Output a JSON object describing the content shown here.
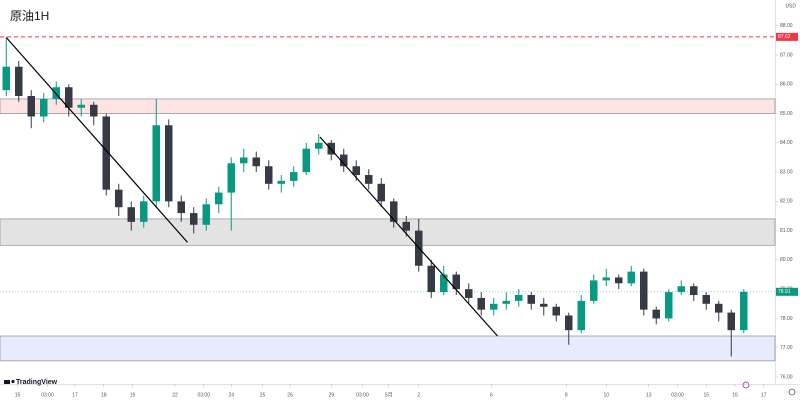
{
  "chart_data": {
    "type": "candlestick",
    "title": "原油1H",
    "currency": "USD",
    "brand": "TradingView",
    "up_color": "#089981",
    "down_color": "#363a45",
    "grid": false,
    "xlim": [
      -0.5,
      61.5
    ],
    "ylim": [
      75.76,
      88.88
    ],
    "yticks": [
      {
        "value": 76,
        "label": "76.00"
      },
      {
        "value": 77,
        "label": "77.00"
      },
      {
        "value": 78,
        "label": "78.00"
      },
      {
        "value": 79,
        "label": "79.00"
      },
      {
        "value": 80,
        "label": "80.00"
      },
      {
        "value": 81,
        "label": "81.00"
      },
      {
        "value": 82,
        "label": "82.00"
      },
      {
        "value": 83,
        "label": "83.00"
      },
      {
        "value": 84,
        "label": "84.00"
      },
      {
        "value": 85,
        "label": "85.00"
      },
      {
        "value": 86,
        "label": "86.00"
      },
      {
        "value": 87,
        "label": "87.00"
      },
      {
        "value": 88,
        "label": "88.00"
      }
    ],
    "xticks": [
      {
        "value": 0.9,
        "label": "15"
      },
      {
        "value": 3.3,
        "label": "03:00"
      },
      {
        "value": 5.5,
        "label": "17"
      },
      {
        "value": 7.8,
        "label": "18"
      },
      {
        "value": 10.1,
        "label": "19"
      },
      {
        "value": 13.5,
        "label": "22"
      },
      {
        "value": 15.8,
        "label": "03:00"
      },
      {
        "value": 18,
        "label": "24"
      },
      {
        "value": 20.5,
        "label": "25"
      },
      {
        "value": 22.7,
        "label": "26"
      },
      {
        "value": 26,
        "label": "29"
      },
      {
        "value": 28.5,
        "label": "03:00"
      },
      {
        "value": 30.6,
        "label": "5月"
      },
      {
        "value": 33,
        "label": "2"
      },
      {
        "value": 38.8,
        "label": "6"
      },
      {
        "value": 44.8,
        "label": "8"
      },
      {
        "value": 48,
        "label": "10"
      },
      {
        "value": 51.4,
        "label": "13"
      },
      {
        "value": 53.7,
        "label": "03:00"
      },
      {
        "value": 56,
        "label": "15"
      },
      {
        "value": 58.3,
        "label": "16"
      },
      {
        "value": 60.6,
        "label": "17"
      }
    ],
    "open": [
      85.8,
      86.6,
      85.6,
      84.9,
      85.5,
      85.9,
      85.2,
      85.3,
      84.9,
      82.4,
      81.8,
      81.3,
      82.0,
      84.6,
      82.0,
      81.6,
      81.2,
      81.9,
      82.3,
      83.3,
      83.5,
      83.2,
      82.6,
      82.7,
      83.0,
      83.8,
      84.0,
      83.6,
      83.2,
      82.9,
      82.6,
      82.0,
      81.3,
      81.0,
      79.8,
      78.9,
      79.5,
      79.0,
      78.7,
      78.3,
      78.5,
      78.6,
      78.8,
      78.5,
      78.4,
      78.1,
      77.6,
      78.6,
      79.3,
      79.4,
      79.2,
      79.6,
      78.3,
      78.0,
      78.9,
      79.1,
      78.8,
      78.5,
      78.2,
      77.6
    ],
    "high": [
      87.6,
      86.8,
      85.8,
      85.7,
      86.1,
      86.0,
      85.5,
      85.4,
      85.0,
      82.6,
      82.0,
      82.2,
      85.5,
      84.8,
      82.2,
      81.8,
      82.1,
      82.5,
      83.5,
      83.8,
      83.7,
      83.4,
      82.9,
      83.2,
      84.0,
      84.3,
      84.1,
      83.8,
      83.4,
      83.1,
      82.8,
      82.1,
      81.5,
      81.4,
      80.0,
      79.8,
      79.6,
      79.2,
      78.9,
      78.7,
      78.9,
      79.0,
      78.9,
      78.7,
      78.5,
      78.2,
      78.8,
      79.5,
      79.7,
      79.5,
      79.8,
      79.7,
      78.4,
      79.0,
      79.3,
      79.2,
      78.9,
      78.6,
      78.3,
      79.0
    ],
    "low": [
      85.6,
      85.4,
      84.5,
      84.7,
      85.3,
      84.9,
      84.9,
      84.6,
      82.2,
      81.5,
      81.0,
      81.1,
      81.8,
      81.8,
      81.3,
      80.9,
      81.0,
      81.6,
      81.0,
      83.0,
      83.0,
      82.4,
      82.3,
      82.5,
      82.9,
      83.6,
      83.4,
      83.0,
      82.7,
      82.4,
      81.8,
      81.1,
      80.8,
      79.6,
      78.7,
      78.8,
      78.8,
      78.5,
      78.1,
      78.1,
      78.3,
      78.4,
      78.3,
      78.1,
      77.9,
      77.1,
      77.5,
      78.5,
      79.1,
      79.0,
      79.1,
      78.1,
      77.8,
      77.9,
      78.8,
      78.6,
      78.3,
      77.9,
      76.7,
      77.5
    ],
    "close": [
      86.6,
      85.6,
      84.9,
      85.5,
      85.9,
      85.2,
      85.3,
      84.9,
      82.4,
      81.8,
      81.3,
      82.0,
      84.6,
      82.0,
      81.6,
      81.2,
      81.9,
      82.3,
      83.3,
      83.5,
      83.2,
      82.6,
      82.7,
      83.0,
      83.8,
      84.0,
      83.6,
      83.2,
      82.9,
      82.6,
      82.0,
      81.3,
      81.0,
      79.8,
      78.9,
      79.5,
      79.0,
      78.7,
      78.3,
      78.5,
      78.6,
      78.8,
      78.5,
      78.4,
      78.1,
      77.6,
      78.6,
      79.3,
      79.4,
      79.2,
      79.6,
      78.3,
      78.0,
      78.9,
      79.1,
      78.8,
      78.5,
      78.2,
      77.6,
      78.91
    ],
    "zones": [
      {
        "from": 85.0,
        "to": 85.5,
        "color": "#fde3e3"
      },
      {
        "from": 80.5,
        "to": 81.4,
        "color": "#e3e3e3"
      },
      {
        "from": 76.55,
        "to": 77.4,
        "color": "#e6ebfd"
      }
    ],
    "level": {
      "value": 87.62,
      "color": "#f23645"
    },
    "trendlines": [
      {
        "x": [
          0,
          14.5
        ],
        "y": [
          87.6,
          80.6
        ]
      },
      {
        "x": [
          25.1,
          39.3
        ],
        "y": [
          84.2,
          77.4
        ]
      }
    ]
  }
}
